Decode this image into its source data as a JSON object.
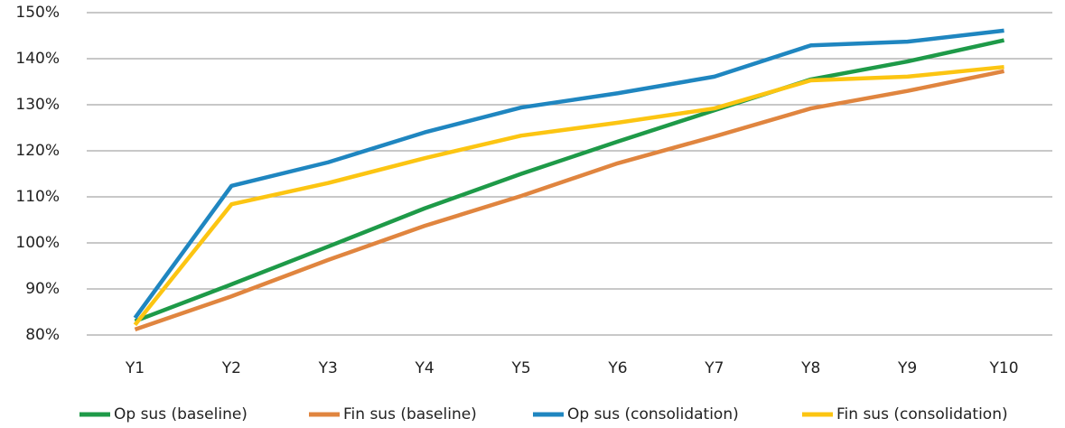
{
  "chart_data": {
    "type": "line",
    "categories": [
      "Y1",
      "Y2",
      "Y3",
      "Y4",
      "Y5",
      "Y6",
      "Y7",
      "Y8",
      "Y9",
      "Y10"
    ],
    "series": [
      {
        "name": "Op sus (baseline)",
        "color": "#1e9a48",
        "values": [
          83,
          91,
          99.2,
          107.5,
          115,
          122,
          128.8,
          135.5,
          139.4,
          144
        ]
      },
      {
        "name": "Fin sus (baseline)",
        "color": "#e0853f",
        "values": [
          81.2,
          88.4,
          96.3,
          103.7,
          110.2,
          117.3,
          123.1,
          129.2,
          133,
          137.3
        ]
      },
      {
        "name": "Op sus (consolidation)",
        "color": "#1f86c0",
        "values": [
          83.7,
          112.4,
          117.5,
          124,
          129.4,
          132.5,
          136.1,
          142.9,
          143.7,
          146.1
        ]
      },
      {
        "name": "Fin sus (consolidation)",
        "color": "#fcc512",
        "values": [
          82.2,
          108.4,
          113,
          118.4,
          123.3,
          126.1,
          129.2,
          135.3,
          136.1,
          138.2
        ]
      }
    ],
    "ylim": [
      80,
      150
    ],
    "yticks": [
      {
        "value": 80,
        "label": "80%"
      },
      {
        "value": 90,
        "label": "90%"
      },
      {
        "value": 100,
        "label": "100%"
      },
      {
        "value": 110,
        "label": "110%"
      },
      {
        "value": 120,
        "label": "120%"
      },
      {
        "value": 130,
        "label": "130%"
      },
      {
        "value": 140,
        "label": "140%"
      },
      {
        "value": 150,
        "label": "150%"
      }
    ],
    "grid": true,
    "legend": "bottom"
  }
}
